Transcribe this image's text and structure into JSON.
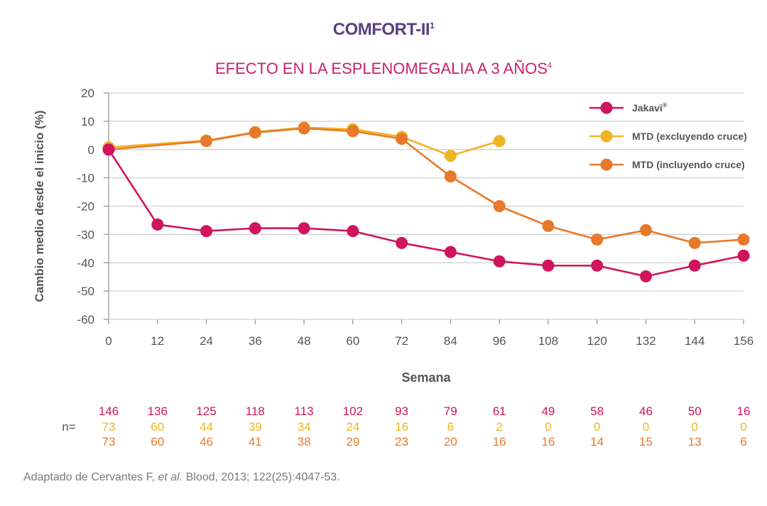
{
  "header": {
    "title": "COMFORT-II",
    "title_sup": "1",
    "subtitle": "EFECTO EN LA ESPLENOMEGALIA A 3 AÑOS",
    "subtitle_sup": "4"
  },
  "chart_data": {
    "type": "line",
    "xlabel": "Semana",
    "ylabel": "Cambio medio desde el inicio (%)",
    "ylim": [
      -60,
      20
    ],
    "yticks": [
      20,
      10,
      0,
      -10,
      -20,
      -30,
      -40,
      -50,
      -60
    ],
    "xticks": [
      0,
      12,
      24,
      36,
      48,
      60,
      72,
      84,
      96,
      108,
      120,
      132,
      144,
      156
    ],
    "grid": true,
    "legend_position": "top-right",
    "series": [
      {
        "name": "Jakavi",
        "name_sup": "®",
        "color": "#d0145d",
        "x": [
          0,
          12,
          24,
          36,
          48,
          60,
          72,
          84,
          96,
          108,
          120,
          132,
          144,
          156
        ],
        "y": [
          0,
          -26.5,
          -28.8,
          -27.8,
          -27.8,
          -28.8,
          -33,
          -36.2,
          -39.5,
          -41,
          -41,
          -44.8,
          -41,
          -37.5
        ]
      },
      {
        "name": "MTD (excluyendo cruce)",
        "color": "#f0b524",
        "x": [
          0,
          24,
          36,
          48,
          60,
          72,
          84,
          96
        ],
        "y": [
          0.8,
          3.2,
          6.2,
          7.8,
          7.2,
          4.5,
          -2.2,
          3
        ]
      },
      {
        "name": "MTD (incluyendo cruce)",
        "color": "#e8792a",
        "x": [
          0,
          24,
          36,
          48,
          60,
          72,
          84,
          96,
          108,
          120,
          132,
          144,
          156
        ],
        "y": [
          0,
          3,
          6,
          7.5,
          6.5,
          3.8,
          -9.5,
          -20,
          -27,
          -31.8,
          -28.5,
          -33,
          -31.8
        ]
      }
    ],
    "n_table": {
      "label": "n=",
      "rows": [
        {
          "color": "#d0145d",
          "values": [
            "146",
            "136",
            "125",
            "118",
            "113",
            "102",
            "93",
            "79",
            "61",
            "49",
            "58",
            "46",
            "50",
            "16"
          ]
        },
        {
          "color": "#f0b524",
          "values": [
            "73",
            "60",
            "44",
            "39",
            "34",
            "24",
            "16",
            "6",
            "2",
            "0",
            "0",
            "0",
            "0",
            "0"
          ]
        },
        {
          "color": "#e8792a",
          "values": [
            "73",
            "60",
            "46",
            "41",
            "38",
            "29",
            "23",
            "20",
            "16",
            "16",
            "14",
            "15",
            "13",
            "6"
          ]
        }
      ]
    }
  },
  "footer": {
    "source_pre": "Adaptado de Cervantes F, ",
    "source_italic": "et al.",
    "source_post": " Blood, 2013; 122(25):4047-53."
  }
}
